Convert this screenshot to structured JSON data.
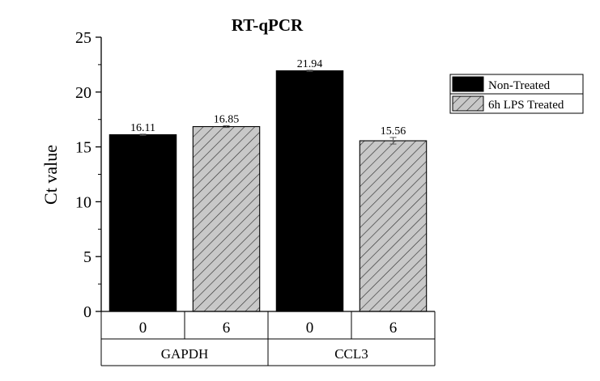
{
  "chart_data": {
    "type": "bar",
    "title": "RT-qPCR",
    "ylabel": "Ct value",
    "xlabel": "",
    "ylim": [
      0,
      25
    ],
    "yticks": [
      0,
      5,
      10,
      15,
      20,
      25
    ],
    "grid": false,
    "legend_position": "right",
    "groups": [
      {
        "name": "GAPDH",
        "categories": [
          "0",
          "6"
        ]
      },
      {
        "name": "CCL3",
        "categories": [
          "0",
          "6"
        ]
      }
    ],
    "series": [
      {
        "name": "Non-Treated",
        "pattern": "solid",
        "color": "#000000",
        "values": [
          16.11,
          21.94
        ],
        "errors": [
          0.05,
          0.05
        ],
        "labels": [
          "16.11",
          "21.94"
        ]
      },
      {
        "name": "6h LPS Treated",
        "pattern": "hatch",
        "color": "#c8c8c8",
        "values": [
          16.85,
          15.56
        ],
        "errors": [
          0.08,
          0.3
        ],
        "labels": [
          "16.85",
          "15.56"
        ]
      }
    ]
  }
}
